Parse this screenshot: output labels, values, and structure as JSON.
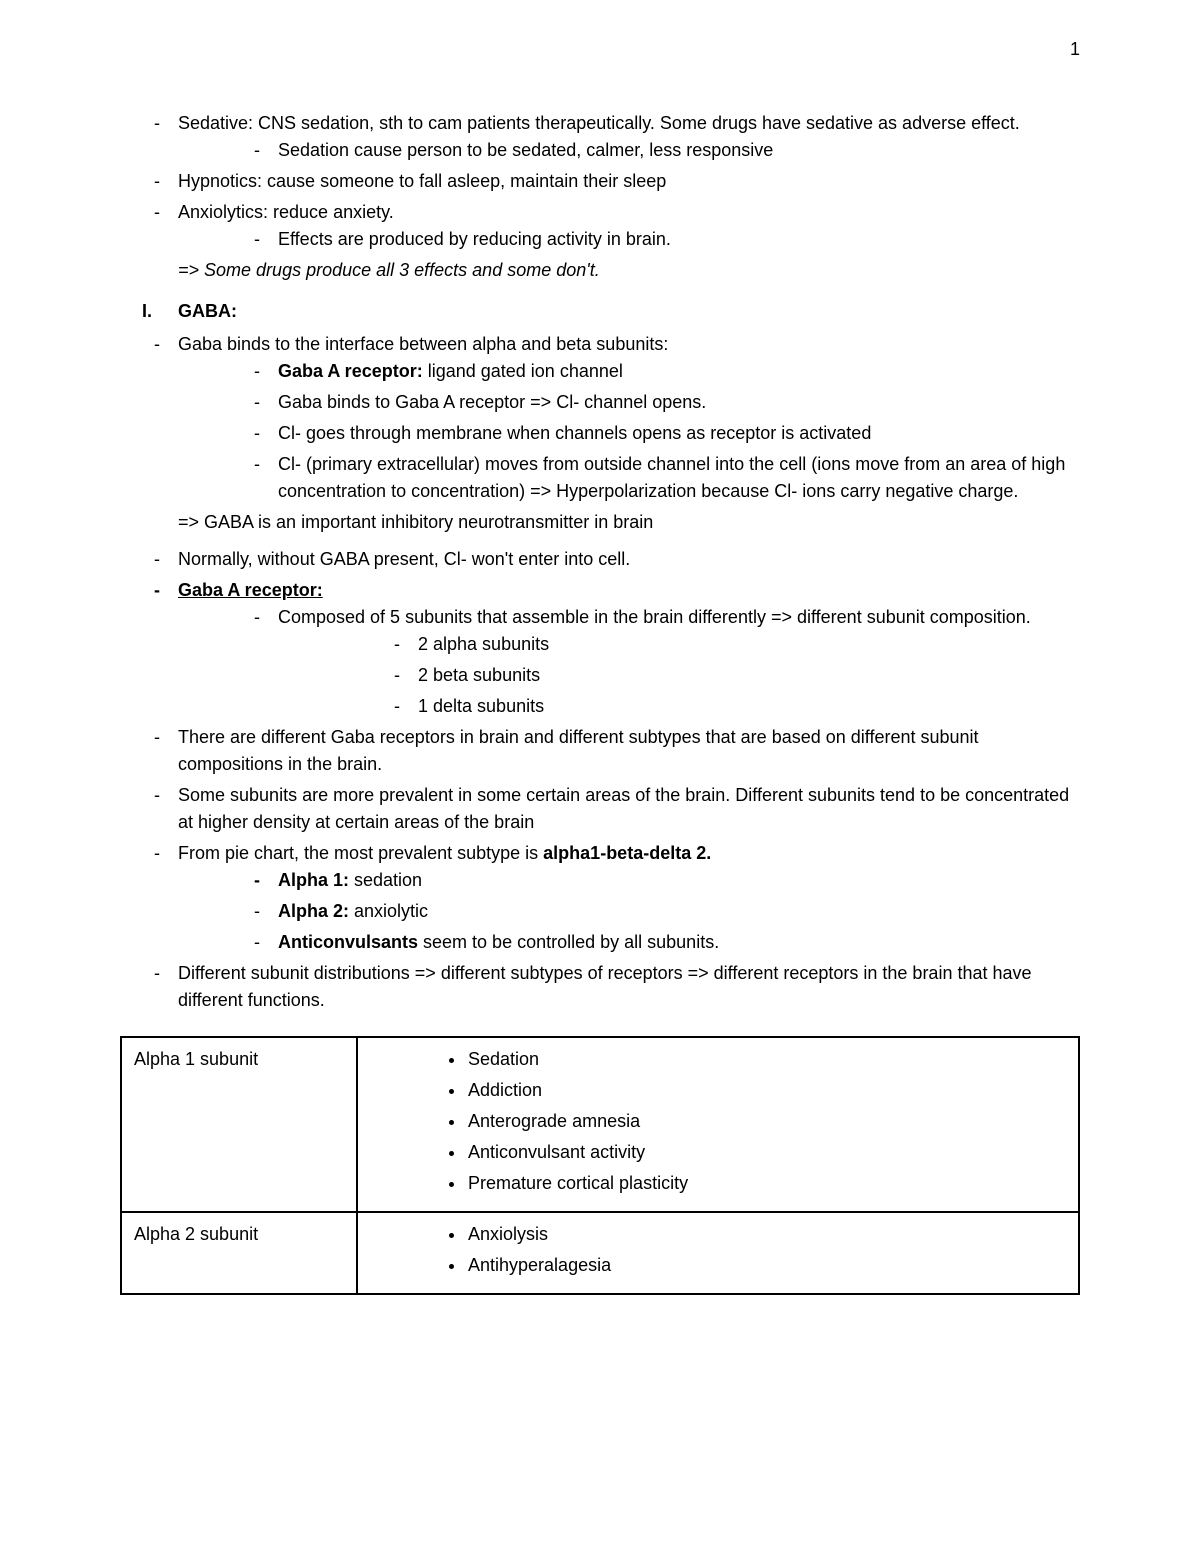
{
  "page_number": "1",
  "intro": {
    "sedative_head": "Sedative: CNS sedation, sth to cam patients therapeutically. Some drugs have sedative as adverse effect.",
    "sedative_sub": "Sedation cause person to be sedated, calmer, less responsive",
    "hypnotics": "Hypnotics: cause someone to fall asleep, maintain their sleep",
    "anxiolytics": "Anxiolytics: reduce anxiety.",
    "anxiolytics_sub": "Effects are produced by reducing activity in brain.",
    "arrow_note": "=> Some drugs produce all 3 effects and some don't."
  },
  "section1": {
    "num": "I.",
    "title": "GABA:",
    "binds_intro": "Gaba binds to the interface between alpha and beta subunits:",
    "gaba_a_label": "Gaba A receptor:",
    "gaba_a_desc": " ligand gated ion channel",
    "bind_open": "Gaba binds to Gaba A receptor => Cl- channel opens.",
    "cl_membrane": "Cl- goes through membrane when channels opens as receptor is activated",
    "cl_move": "Cl- (primary extracellular) moves from outside channel into the cell (ions move from an area of high concentration to concentration) => Hyperpolarization because Cl- ions carry negative charge.",
    "arrow_inhib": "=> GABA is an important inhibitory neurotransmitter in brain",
    "normally": "Normally, without GABA present, Cl- won't enter into cell.",
    "gaba_a_receptor_head": "Gaba A receptor:",
    "composed": "Composed of 5 subunits that assemble in the brain differently => different subunit composition.",
    "sub_alpha": "2 alpha subunits",
    "sub_beta": "2 beta subunits",
    "sub_delta": "1 delta subunits",
    "different_receptors": "There are different Gaba receptors in brain and different subtypes that are based on different subunit compositions in the brain.",
    "prevalent": "Some subunits are more prevalent in some certain areas of the brain. Different subunits tend to be concentrated at higher density at certain areas of the brain",
    "pie_intro": "From pie chart, the most prevalent subtype is ",
    "pie_bold": "alpha1-beta-delta 2.",
    "alpha1_label": "Alpha 1:",
    "alpha1_desc": " sedation",
    "alpha2_label": "Alpha 2:",
    "alpha2_desc": " anxiolytic",
    "anticonv_label": "Anticonvulsants",
    "anticonv_desc": " seem to be controlled by all subunits.",
    "distributions": "Different subunit distributions => different subtypes of receptors => different receptors in the brain that have different functions."
  },
  "table": {
    "rows": [
      {
        "label": "Alpha 1 subunit",
        "items": [
          "Sedation",
          "Addiction",
          "Anterograde amnesia",
          "Anticonvulsant activity",
          "Premature cortical plasticity"
        ]
      },
      {
        "label": "Alpha 2 subunit",
        "items": [
          "Anxiolysis",
          "Antihyperalagesia"
        ]
      }
    ]
  }
}
